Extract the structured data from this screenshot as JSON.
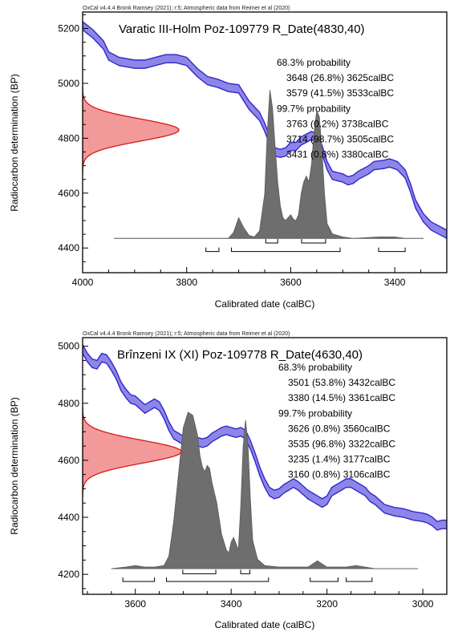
{
  "chart_data": [
    {
      "type": "area",
      "credit": "OxCal v4.4.4 Bronk Ramsey (2021); r:5; Atmospheric data from Reimer et al (2020)",
      "title": "Varatic III-Holm Poz-109779 R_Date(4830,40)",
      "xlabel": "Calibrated date (calBC)",
      "ylabel": "Radiocarbon determination (BP)",
      "xlim": [
        4000,
        3300
      ],
      "ylim": [
        4310,
        5260
      ],
      "x_ticks": [
        4000,
        3800,
        3600,
        3400
      ],
      "x_tick_labels": [
        "4000",
        "3800",
        "3600",
        "3400"
      ],
      "y_ticks": [
        4400,
        4600,
        4800,
        5000,
        5200
      ],
      "y_tick_labels": [
        "4400",
        "4600",
        "4800",
        "5000",
        "5200"
      ],
      "ranges_text": [
        "68.3% probability",
        "3648 (26.8%) 3625calBC",
        "3579 (41.5%) 3533calBC",
        "99.7% probability",
        "3763 (0.2%) 3738calBC",
        "3714 (98.7%) 3505calBC",
        "3431 (0.8%) 3380calBC"
      ],
      "ranges_68": [
        [
          3648,
          3625
        ],
        [
          3579,
          3533
        ]
      ],
      "ranges_99": [
        [
          3763,
          3738
        ],
        [
          3714,
          3505
        ],
        [
          3431,
          3380
        ]
      ],
      "radiocarbon_date": {
        "mean": 4830,
        "sd": 40
      },
      "calibration_curve": [
        [
          4000,
          5210
        ],
        [
          3980,
          5180
        ],
        [
          3960,
          5140
        ],
        [
          3950,
          5100
        ],
        [
          3930,
          5080
        ],
        [
          3900,
          5070
        ],
        [
          3880,
          5070
        ],
        [
          3860,
          5080
        ],
        [
          3840,
          5090
        ],
        [
          3820,
          5090
        ],
        [
          3800,
          5080
        ],
        [
          3780,
          5040
        ],
        [
          3760,
          5010
        ],
        [
          3740,
          5000
        ],
        [
          3720,
          4985
        ],
        [
          3700,
          4980
        ],
        [
          3680,
          4920
        ],
        [
          3670,
          4900
        ],
        [
          3660,
          4880
        ],
        [
          3650,
          4840
        ],
        [
          3640,
          4790
        ],
        [
          3630,
          4750
        ],
        [
          3620,
          4745
        ],
        [
          3610,
          4750
        ],
        [
          3600,
          4770
        ],
        [
          3590,
          4770
        ],
        [
          3580,
          4790
        ],
        [
          3570,
          4800
        ],
        [
          3560,
          4810
        ],
        [
          3550,
          4800
        ],
        [
          3540,
          4760
        ],
        [
          3530,
          4700
        ],
        [
          3520,
          4665
        ],
        [
          3510,
          4660
        ],
        [
          3500,
          4655
        ],
        [
          3490,
          4645
        ],
        [
          3480,
          4650
        ],
        [
          3470,
          4665
        ],
        [
          3450,
          4685
        ],
        [
          3440,
          4700
        ],
        [
          3420,
          4705
        ],
        [
          3410,
          4710
        ],
        [
          3395,
          4700
        ],
        [
          3380,
          4670
        ],
        [
          3370,
          4620
        ],
        [
          3360,
          4560
        ],
        [
          3345,
          4510
        ],
        [
          3330,
          4480
        ],
        [
          3310,
          4460
        ],
        [
          3300,
          4450
        ]
      ],
      "calibration_curve_halfwidth": 15,
      "calibrated_distribution": [
        [
          3940,
          0
        ],
        [
          3720,
          0
        ],
        [
          3710,
          0.04
        ],
        [
          3700,
          0.14
        ],
        [
          3690,
          0.07
        ],
        [
          3680,
          0.02
        ],
        [
          3670,
          0.01
        ],
        [
          3660,
          0.05
        ],
        [
          3650,
          0.3
        ],
        [
          3645,
          0.72
        ],
        [
          3640,
          1.0
        ],
        [
          3635,
          0.88
        ],
        [
          3630,
          0.62
        ],
        [
          3625,
          0.38
        ],
        [
          3620,
          0.22
        ],
        [
          3615,
          0.14
        ],
        [
          3610,
          0.12
        ],
        [
          3600,
          0.16
        ],
        [
          3595,
          0.13
        ],
        [
          3590,
          0.12
        ],
        [
          3585,
          0.16
        ],
        [
          3580,
          0.3
        ],
        [
          3575,
          0.38
        ],
        [
          3570,
          0.42
        ],
        [
          3565,
          0.38
        ],
        [
          3560,
          0.5
        ],
        [
          3555,
          0.72
        ],
        [
          3550,
          0.86
        ],
        [
          3545,
          0.82
        ],
        [
          3540,
          0.6
        ],
        [
          3535,
          0.3
        ],
        [
          3530,
          0.1
        ],
        [
          3520,
          0.03
        ],
        [
          3500,
          0.01
        ],
        [
          3480,
          0
        ],
        [
          3430,
          0.01
        ],
        [
          3400,
          0.01
        ],
        [
          3380,
          0
        ],
        [
          3345,
          0
        ]
      ]
    },
    {
      "type": "area",
      "credit": "OxCal v4.4.4 Bronk Ramsey (2021); r:5; Atmospheric data from Reimer et al (2020)",
      "title": "Brînzeni IX (XI) Poz-109778 R_Date(4630,40)",
      "xlabel": "Calibrated date (calBC)",
      "ylabel": "Radiocarbon determination (BP)",
      "xlim": [
        3710,
        2950
      ],
      "ylim": [
        4130,
        5030
      ],
      "x_ticks": [
        3600,
        3400,
        3200,
        3000
      ],
      "x_tick_labels": [
        "3600",
        "3400",
        "3200",
        "3000"
      ],
      "y_ticks": [
        4200,
        4400,
        4600,
        4800,
        5000
      ],
      "y_tick_labels": [
        "4200",
        "4400",
        "4600",
        "4800",
        "5000"
      ],
      "ranges_text": [
        "68.3% probability",
        "3501 (53.8%) 3432calBC",
        "3380 (14.5%) 3361calBC",
        "99.7% probability",
        "3626 (0.8%) 3560calBC",
        "3535 (96.8%) 3322calBC",
        "3235 (1.4%) 3177calBC",
        "3160 (0.8%) 3106calBC"
      ],
      "ranges_68": [
        [
          3501,
          3432
        ],
        [
          3380,
          3361
        ]
      ],
      "ranges_99": [
        [
          3626,
          3560
        ],
        [
          3535,
          3322
        ],
        [
          3235,
          3177
        ],
        [
          3160,
          3106
        ]
      ],
      "radiocarbon_date": {
        "mean": 4630,
        "sd": 40
      },
      "calibration_curve": [
        [
          3710,
          4990
        ],
        [
          3700,
          4960
        ],
        [
          3690,
          4940
        ],
        [
          3680,
          4935
        ],
        [
          3670,
          4960
        ],
        [
          3660,
          4955
        ],
        [
          3650,
          4930
        ],
        [
          3640,
          4900
        ],
        [
          3630,
          4860
        ],
        [
          3620,
          4835
        ],
        [
          3610,
          4815
        ],
        [
          3600,
          4810
        ],
        [
          3590,
          4795
        ],
        [
          3580,
          4780
        ],
        [
          3570,
          4790
        ],
        [
          3560,
          4800
        ],
        [
          3550,
          4790
        ],
        [
          3540,
          4760
        ],
        [
          3530,
          4720
        ],
        [
          3520,
          4690
        ],
        [
          3510,
          4680
        ],
        [
          3500,
          4670
        ],
        [
          3490,
          4665
        ],
        [
          3480,
          4670
        ],
        [
          3470,
          4665
        ],
        [
          3460,
          4660
        ],
        [
          3450,
          4665
        ],
        [
          3440,
          4680
        ],
        [
          3430,
          4690
        ],
        [
          3420,
          4700
        ],
        [
          3410,
          4705
        ],
        [
          3400,
          4700
        ],
        [
          3390,
          4695
        ],
        [
          3380,
          4700
        ],
        [
          3370,
          4690
        ],
        [
          3360,
          4655
        ],
        [
          3350,
          4610
        ],
        [
          3340,
          4560
        ],
        [
          3330,
          4520
        ],
        [
          3320,
          4490
        ],
        [
          3310,
          4480
        ],
        [
          3300,
          4485
        ],
        [
          3290,
          4500
        ],
        [
          3280,
          4510
        ],
        [
          3270,
          4520
        ],
        [
          3260,
          4510
        ],
        [
          3250,
          4495
        ],
        [
          3240,
          4480
        ],
        [
          3230,
          4470
        ],
        [
          3220,
          4460
        ],
        [
          3210,
          4450
        ],
        [
          3200,
          4460
        ],
        [
          3190,
          4490
        ],
        [
          3180,
          4500
        ],
        [
          3170,
          4510
        ],
        [
          3160,
          4520
        ],
        [
          3150,
          4520
        ],
        [
          3140,
          4510
        ],
        [
          3130,
          4500
        ],
        [
          3120,
          4490
        ],
        [
          3110,
          4470
        ],
        [
          3100,
          4460
        ],
        [
          3090,
          4445
        ],
        [
          3080,
          4430
        ],
        [
          3060,
          4420
        ],
        [
          3040,
          4415
        ],
        [
          3020,
          4405
        ],
        [
          3000,
          4400
        ],
        [
          2990,
          4395
        ],
        [
          2980,
          4385
        ],
        [
          2970,
          4370
        ],
        [
          2960,
          4375
        ],
        [
          2950,
          4375
        ]
      ],
      "calibration_curve_halfwidth": 15,
      "calibrated_distribution": [
        [
          3650,
          0
        ],
        [
          3620,
          0.01
        ],
        [
          3600,
          0.02
        ],
        [
          3580,
          0.01
        ],
        [
          3560,
          0.01
        ],
        [
          3540,
          0.02
        ],
        [
          3530,
          0.08
        ],
        [
          3520,
          0.3
        ],
        [
          3510,
          0.6
        ],
        [
          3500,
          0.9
        ],
        [
          3490,
          1.0
        ],
        [
          3480,
          0.98
        ],
        [
          3470,
          0.85
        ],
        [
          3465,
          0.72
        ],
        [
          3460,
          0.65
        ],
        [
          3455,
          0.62
        ],
        [
          3450,
          0.66
        ],
        [
          3445,
          0.64
        ],
        [
          3440,
          0.55
        ],
        [
          3430,
          0.42
        ],
        [
          3420,
          0.22
        ],
        [
          3410,
          0.12
        ],
        [
          3405,
          0.1
        ],
        [
          3400,
          0.17
        ],
        [
          3395,
          0.2
        ],
        [
          3390,
          0.16
        ],
        [
          3385,
          0.12
        ],
        [
          3380,
          0.4
        ],
        [
          3375,
          0.78
        ],
        [
          3370,
          0.95
        ],
        [
          3365,
          0.8
        ],
        [
          3360,
          0.45
        ],
        [
          3355,
          0.18
        ],
        [
          3345,
          0.06
        ],
        [
          3330,
          0.02
        ],
        [
          3300,
          0.01
        ],
        [
          3240,
          0.01
        ],
        [
          3230,
          0.03
        ],
        [
          3220,
          0.05
        ],
        [
          3210,
          0.03
        ],
        [
          3200,
          0.01
        ],
        [
          3160,
          0.01
        ],
        [
          3140,
          0.02
        ],
        [
          3120,
          0.01
        ],
        [
          3100,
          0
        ],
        [
          3010,
          0
        ]
      ]
    }
  ]
}
